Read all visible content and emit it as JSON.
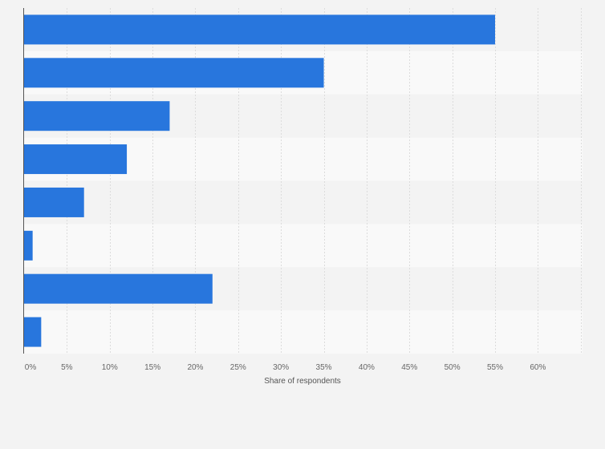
{
  "chart_data": {
    "type": "bar",
    "orientation": "horizontal",
    "categories": [
      "",
      "",
      "",
      "",
      "",
      "",
      "",
      ""
    ],
    "values": [
      55,
      35,
      17,
      12,
      7,
      1,
      22,
      2
    ],
    "unit": "%",
    "xlabel": "Share of respondents",
    "ylabel": "",
    "xlim": [
      0,
      65
    ],
    "x_ticks": [
      "0%",
      "5%",
      "10%",
      "15%",
      "20%",
      "25%",
      "30%",
      "35%",
      "40%",
      "45%",
      "50%",
      "55%",
      "60%"
    ],
    "grid": true,
    "bar_color": "#2876dd",
    "row_band_colors": [
      "#f3f3f3",
      "#f9f9f9"
    ]
  }
}
